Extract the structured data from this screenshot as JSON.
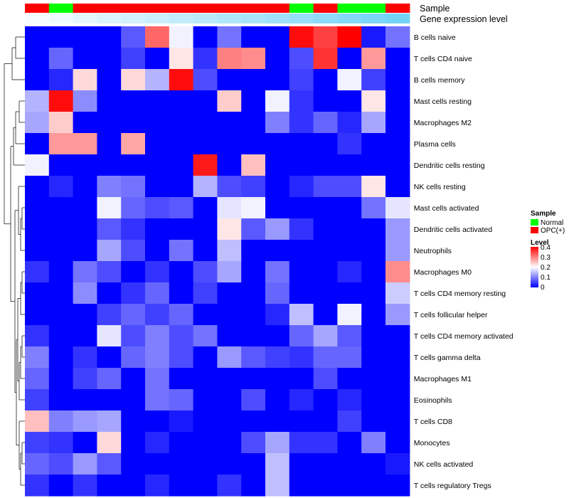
{
  "chart_data": {
    "type": "heatmap",
    "title": "",
    "annotations": {
      "sample_label": "Sample",
      "expression_label": "Gene expression level",
      "sample_columns": [
        "OPC(+)",
        "Normal",
        "OPC(+)",
        "OPC(+)",
        "OPC(+)",
        "OPC(+)",
        "OPC(+)",
        "OPC(+)",
        "OPC(+)",
        "OPC(+)",
        "OPC(+)",
        "Normal",
        "OPC(+)",
        "Normal",
        "Normal",
        "OPC(+)"
      ],
      "expression_columns": [
        0.05,
        0.1,
        0.15,
        0.2,
        0.25,
        0.3,
        0.35,
        0.4,
        0.45,
        0.5,
        0.55,
        0.6,
        0.65,
        0.7,
        0.75,
        0.8
      ]
    },
    "rows": [
      "B cells naive",
      "T cells CD4 naive",
      "B cells memory",
      "Mast cells resting",
      "Macrophages M2",
      "Plasma cells",
      "Dendritic cells resting",
      "NK cells resting",
      "Mast cells activated",
      "Dendritic cells activated",
      "Neutrophils",
      "Macrophages M0",
      "T cells CD4 memory resting",
      "T cells follicular helper",
      "T cells CD4 memory activated",
      "T cells gamma delta",
      "Macrophages M1",
      "Eosinophils",
      "T cells CD8",
      "Monocytes",
      "NK cells activated",
      "T cells regulatory  Tregs"
    ],
    "values": [
      [
        0,
        0,
        0,
        0,
        0.07,
        0.32,
        0.19,
        0,
        0.09,
        0,
        0,
        0.39,
        0.35,
        0.4,
        0.02,
        0.09
      ],
      [
        0,
        0.08,
        0,
        0,
        0.05,
        0,
        0.22,
        0.04,
        0.3,
        0.29,
        0,
        0.06,
        0.36,
        0,
        0.28,
        0
      ],
      [
        0,
        0.03,
        0.23,
        0,
        0.23,
        0.14,
        0.39,
        0.06,
        0,
        0,
        0,
        0.05,
        0,
        0.19,
        0.05,
        0
      ],
      [
        0.14,
        0.39,
        0.11,
        0,
        0,
        0,
        0,
        0,
        0.24,
        0,
        0.19,
        0.04,
        0,
        0,
        0.22,
        0
      ],
      [
        0.13,
        0.24,
        0,
        0,
        0,
        0,
        0,
        0,
        0,
        0,
        0.1,
        0.04,
        0.08,
        0.03,
        0.13,
        0
      ],
      [
        0,
        0.28,
        0.28,
        0,
        0.27,
        0,
        0,
        0,
        0,
        0,
        0,
        0,
        0,
        0.04,
        0,
        0
      ],
      [
        0.19,
        0,
        0,
        0,
        0,
        0,
        0,
        0.38,
        0,
        0.25,
        0,
        0,
        0,
        0,
        0,
        0
      ],
      [
        0,
        0.03,
        0,
        0.1,
        0.09,
        0,
        0,
        0.14,
        0.06,
        0.05,
        0,
        0.03,
        0.06,
        0.06,
        0.22,
        0
      ],
      [
        0,
        0,
        0,
        0.19,
        0.08,
        0.06,
        0.07,
        0,
        0.18,
        0.19,
        0,
        0,
        0,
        0,
        0.09,
        0.18
      ],
      [
        0,
        0,
        0,
        0.07,
        0.04,
        0,
        0,
        0,
        0.22,
        0.07,
        0.12,
        0.04,
        0,
        0,
        0,
        0.12
      ],
      [
        0,
        0,
        0,
        0.13,
        0.06,
        0,
        0.09,
        0,
        0.15,
        0,
        0,
        0,
        0,
        0,
        0,
        0.12
      ],
      [
        0.04,
        0,
        0.09,
        0.06,
        0,
        0.04,
        0,
        0.06,
        0.13,
        0,
        0.09,
        0,
        0,
        0.03,
        0,
        0.29
      ],
      [
        0,
        0,
        0.11,
        0,
        0.04,
        0.08,
        0,
        0.05,
        0,
        0,
        0.08,
        0,
        0,
        0,
        0,
        0.16
      ],
      [
        0,
        0,
        0,
        0.05,
        0.08,
        0.05,
        0.08,
        0,
        0,
        0,
        0.03,
        0.15,
        0,
        0.19,
        0,
        0.12
      ],
      [
        0.04,
        0,
        0,
        0.18,
        0.06,
        0.1,
        0.06,
        0.09,
        0,
        0,
        0,
        0.08,
        0.13,
        0.07,
        0,
        0
      ],
      [
        0.1,
        0,
        0.04,
        0,
        0.08,
        0.1,
        0.06,
        0,
        0.12,
        0.07,
        0.05,
        0.04,
        0.08,
        0.08,
        0,
        0
      ],
      [
        0.08,
        0,
        0.05,
        0.08,
        0,
        0.09,
        0,
        0,
        0,
        0,
        0,
        0,
        0.06,
        0,
        0,
        0
      ],
      [
        0.05,
        0,
        0,
        0,
        0,
        0.09,
        0.08,
        0,
        0,
        0.06,
        0,
        0.03,
        0,
        0.03,
        0,
        0
      ],
      [
        0.25,
        0.1,
        0.12,
        0.13,
        0,
        0,
        0.02,
        0,
        0,
        0,
        0,
        0,
        0,
        0.05,
        0,
        0
      ],
      [
        0.05,
        0.04,
        0,
        0.23,
        0,
        0.03,
        0,
        0,
        0,
        0.06,
        0.13,
        0.04,
        0.04,
        0,
        0.1,
        0
      ],
      [
        0.08,
        0.06,
        0.12,
        0.07,
        0,
        0,
        0,
        0,
        0,
        0,
        0.15,
        0,
        0,
        0,
        0,
        0.02
      ],
      [
        0.04,
        0,
        0.04,
        0,
        0,
        0.03,
        0,
        0,
        0.04,
        0,
        0.15,
        0,
        0,
        0,
        0,
        0
      ]
    ],
    "color_scale": {
      "min": 0,
      "max": 0.4,
      "low": "#0000ff",
      "mid": "#ffffff",
      "high": "#ff0000"
    },
    "legend": {
      "placement": "right",
      "sample_title": "Sample",
      "sample_entries": [
        {
          "label": "Normal",
          "color": "#00ff00"
        },
        {
          "label": "OPC(+)",
          "color": "#ff0000"
        }
      ],
      "level_title": "Level",
      "level_ticks": [
        "0.4",
        "0.3",
        "0.2",
        "0.1",
        "0"
      ]
    },
    "row_dendrogram": true,
    "xlabel": "",
    "ylabel": ""
  }
}
